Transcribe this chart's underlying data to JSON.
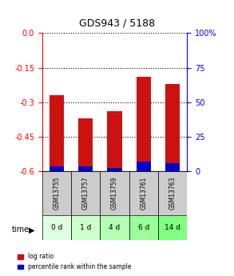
{
  "title": "GDS943 / 5188",
  "samples": [
    "GSM13755",
    "GSM13757",
    "GSM13759",
    "GSM13761",
    "GSM13763"
  ],
  "time_labels": [
    "0 d",
    "1 d",
    "4 d",
    "6 d",
    "14 d"
  ],
  "log_ratio": [
    -0.27,
    -0.37,
    -0.34,
    -0.19,
    -0.22
  ],
  "percentile_rank": [
    3.5,
    3.5,
    2.5,
    7.0,
    5.5
  ],
  "ylim_left": [
    -0.6,
    0.0
  ],
  "ylim_right": [
    0,
    100
  ],
  "yticks_left": [
    0.0,
    -0.15,
    -0.3,
    -0.45,
    -0.6
  ],
  "yticks_right": [
    100,
    75,
    50,
    25,
    0
  ],
  "ytick_right_labels": [
    "100%",
    "75",
    "50",
    "25",
    "0"
  ],
  "bar_color_red": "#cc1111",
  "bar_color_blue": "#0000cc",
  "bar_width": 0.5,
  "gray_box_color": "#cccccc",
  "green_colors": [
    "#e0ffe0",
    "#ccffcc",
    "#b3ffb3",
    "#99ff99",
    "#80ff80"
  ],
  "legend_label_red": "log ratio",
  "legend_label_blue": "percentile rank within the sample",
  "time_label": "time"
}
